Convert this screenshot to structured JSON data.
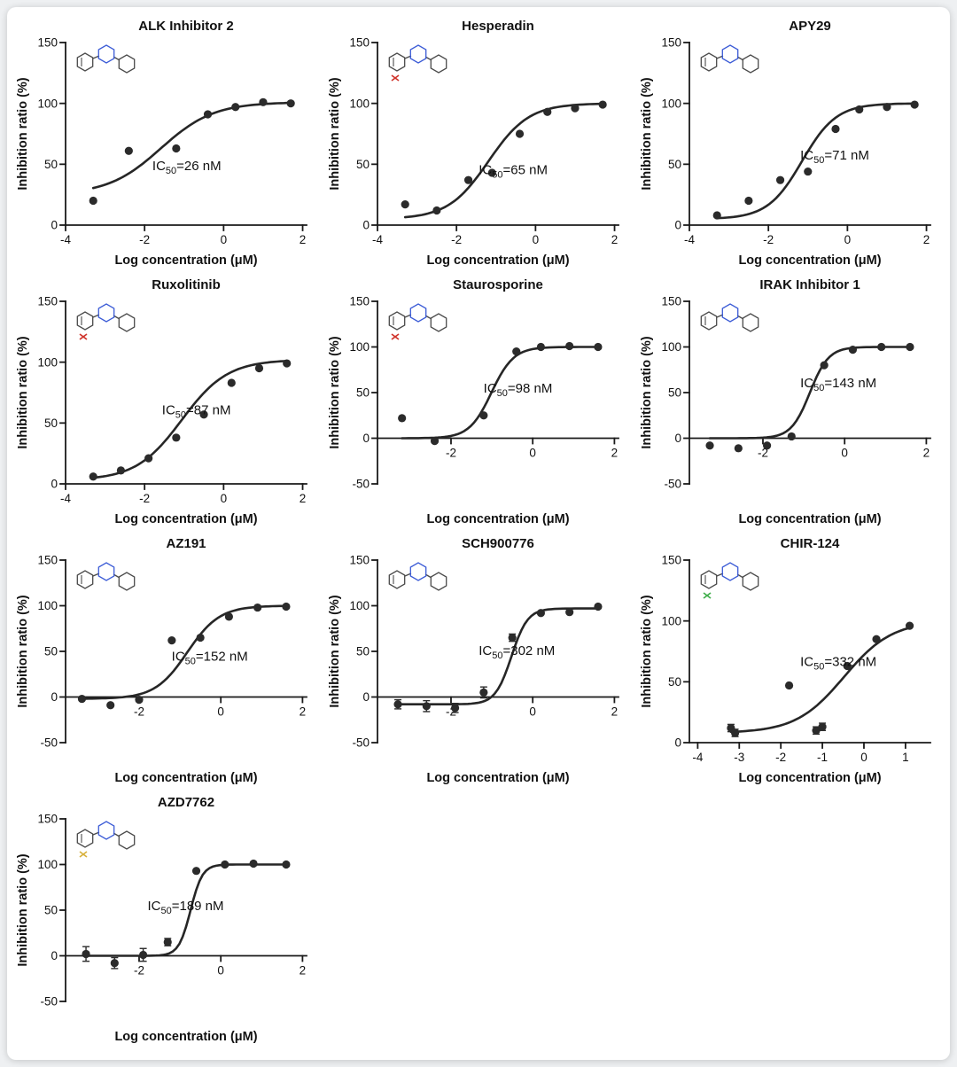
{
  "page": {
    "background": "#eef0f2",
    "card_background": "#ffffff"
  },
  "labels": {
    "ic50_prefix": "IC",
    "ic50_sub": "50",
    "ic50_eq": "="
  },
  "colors": {
    "axis": "#1a1a1a",
    "curve": "#262626",
    "point": "#2b2b2b",
    "molecule_gray": "#4a4a4a",
    "molecule_blue": "#3b5bd6",
    "molecule_red": "#d0342c",
    "molecule_green": "#3fae4a",
    "molecule_yellow": "#d8b13c"
  },
  "chart_data": [
    {
      "type": "scatter",
      "title": "ALK Inhibitor 2",
      "xlabel": "Log concentration (μM)",
      "ylabel": "Inhibition ratio (%)",
      "xlim": [
        -4,
        2.1
      ],
      "ylim": [
        0,
        150
      ],
      "xticks": [
        -4,
        -2,
        0,
        2
      ],
      "yticks": [
        0,
        50,
        100,
        150
      ],
      "ic50_nM": 26,
      "ic50_value": "26 nM",
      "ic50_text": "IC50=26 nM",
      "points": [
        [
          -3.3,
          20
        ],
        [
          -2.4,
          61
        ],
        [
          -1.2,
          63
        ],
        [
          -0.4,
          91
        ],
        [
          0.3,
          97
        ],
        [
          1.0,
          101
        ],
        [
          1.7,
          100
        ]
      ],
      "fit": {
        "bottom": 25,
        "top": 101,
        "logIC50": -1.59,
        "hill": 0.65
      },
      "ic50_pos": {
        "fx": 0.36,
        "fy": 0.7
      },
      "structure_icon": "molecule-skeletal-icon",
      "molecule": {
        "primary": "#4a4a4a",
        "accent": "#3b5bd6"
      }
    },
    {
      "type": "scatter",
      "title": "Hesperadin",
      "xlabel": "Log concentration (μM)",
      "ylabel": "Inhibition ratio (%)",
      "xlim": [
        -4,
        2.1
      ],
      "ylim": [
        0,
        150
      ],
      "xticks": [
        -4,
        -2,
        0,
        2
      ],
      "yticks": [
        0,
        50,
        100,
        150
      ],
      "ic50_nM": 65,
      "ic50_value": "65 nM",
      "ic50_text": "IC50=65 nM",
      "points": [
        [
          -3.3,
          17
        ],
        [
          -2.5,
          12
        ],
        [
          -1.7,
          37
        ],
        [
          -1.1,
          43
        ],
        [
          -0.4,
          75
        ],
        [
          0.3,
          93
        ],
        [
          1.0,
          96
        ],
        [
          1.7,
          99
        ]
      ],
      "fit": {
        "bottom": 5,
        "top": 100,
        "logIC50": -1.19,
        "hill": 0.85
      },
      "ic50_pos": {
        "fx": 0.42,
        "fy": 0.72
      },
      "structure_icon": "molecule-skeletal-icon",
      "molecule": {
        "primary": "#4a4a4a",
        "accent": "#3b5bd6",
        "accent2": "#d0342c"
      }
    },
    {
      "type": "scatter",
      "title": "APY29",
      "xlabel": "Log concentration (μM)",
      "ylabel": "Inhibition ratio (%)",
      "xlim": [
        -4,
        2.1
      ],
      "ylim": [
        0,
        150
      ],
      "xticks": [
        -4,
        -2,
        0,
        2
      ],
      "yticks": [
        0,
        50,
        100,
        150
      ],
      "ic50_nM": 71,
      "ic50_value": "71 nM",
      "ic50_text": "IC50=71 nM",
      "points": [
        [
          -3.3,
          8
        ],
        [
          -2.5,
          20
        ],
        [
          -1.7,
          37
        ],
        [
          -1.0,
          44
        ],
        [
          -0.3,
          79
        ],
        [
          0.3,
          95
        ],
        [
          1.0,
          97
        ],
        [
          1.7,
          99
        ]
      ],
      "fit": {
        "bottom": 5,
        "top": 100,
        "logIC50": -1.15,
        "hill": 1.0
      },
      "ic50_pos": {
        "fx": 0.46,
        "fy": 0.64
      },
      "structure_icon": "molecule-skeletal-icon",
      "molecule": {
        "primary": "#4a4a4a",
        "accent": "#3b5bd6"
      }
    },
    {
      "type": "scatter",
      "title": "Ruxolitinib",
      "xlabel": "Log concentration (μM)",
      "ylabel": "Inhibition ratio (%)",
      "xlim": [
        -4,
        2.1
      ],
      "ylim": [
        0,
        150
      ],
      "xticks": [
        -4,
        -2,
        0,
        2
      ],
      "yticks": [
        0,
        50,
        100,
        150
      ],
      "ic50_nM": 87,
      "ic50_value": "87 nM",
      "ic50_text": "IC50=87 nM",
      "points": [
        [
          -3.3,
          6
        ],
        [
          -2.6,
          11
        ],
        [
          -1.9,
          21
        ],
        [
          -1.2,
          38
        ],
        [
          -0.5,
          57
        ],
        [
          0.2,
          83
        ],
        [
          0.9,
          95
        ],
        [
          1.6,
          99
        ]
      ],
      "fit": {
        "bottom": 3,
        "top": 102,
        "logIC50": -1.06,
        "hill": 0.75
      },
      "ic50_pos": {
        "fx": 0.4,
        "fy": 0.62
      },
      "structure_icon": "molecule-skeletal-icon",
      "molecule": {
        "primary": "#4a4a4a",
        "accent": "#3b5bd6",
        "accent2": "#d0342c"
      }
    },
    {
      "type": "scatter",
      "title": "Staurosporine",
      "xlabel": "Log concentration (μM)",
      "ylabel": "Inhibition ratio (%)",
      "xlim": [
        -3.8,
        2.1
      ],
      "ylim": [
        -50,
        150
      ],
      "xticks": [
        -2,
        0,
        2
      ],
      "yticks": [
        -50,
        0,
        50,
        100,
        150
      ],
      "ic50_nM": 98,
      "ic50_value": "98 nM",
      "ic50_text": "IC50=98 nM",
      "points": [
        [
          -3.2,
          22
        ],
        [
          -2.4,
          -3
        ],
        [
          -1.2,
          25
        ],
        [
          -0.4,
          95
        ],
        [
          0.2,
          100
        ],
        [
          0.9,
          101
        ],
        [
          1.6,
          100
        ]
      ],
      "fit": {
        "bottom": 0,
        "top": 100,
        "logIC50": -1.01,
        "hill": 1.6
      },
      "ic50_pos": {
        "fx": 0.44,
        "fy": 0.5
      },
      "structure_icon": "molecule-skeletal-icon",
      "molecule": {
        "primary": "#4a4a4a",
        "accent": "#3b5bd6",
        "accent2": "#d0342c"
      }
    },
    {
      "type": "scatter",
      "title": "IRAK Inhibitor 1",
      "xlabel": "Log concentration (μM)",
      "ylabel": "Inhibition ratio (%)",
      "xlim": [
        -3.8,
        2.1
      ],
      "ylim": [
        -50,
        150
      ],
      "xticks": [
        -2,
        0,
        2
      ],
      "yticks": [
        -50,
        0,
        50,
        100,
        150
      ],
      "ic50_nM": 143,
      "ic50_value": "143 nM",
      "ic50_text": "IC50=143 nM",
      "points": [
        [
          -3.3,
          -8
        ],
        [
          -2.6,
          -11
        ],
        [
          -1.9,
          -8
        ],
        [
          -1.3,
          2
        ],
        [
          -0.5,
          80
        ],
        [
          0.2,
          97
        ],
        [
          0.9,
          100
        ],
        [
          1.6,
          100
        ]
      ],
      "fit": {
        "bottom": 0,
        "top": 100,
        "logIC50": -0.85,
        "hill": 1.9
      },
      "ic50_pos": {
        "fx": 0.46,
        "fy": 0.47
      },
      "structure_icon": "molecule-skeletal-icon",
      "molecule": {
        "primary": "#4a4a4a",
        "accent": "#3b5bd6"
      }
    },
    {
      "type": "scatter",
      "title": "AZ191",
      "xlabel": "Log concentration (μM)",
      "ylabel": "Inhibition ratio (%)",
      "xlim": [
        -3.8,
        2.1
      ],
      "ylim": [
        -50,
        150
      ],
      "xticks": [
        -2,
        0,
        2
      ],
      "yticks": [
        -50,
        0,
        50,
        100,
        150
      ],
      "ic50_nM": 152,
      "ic50_value": "152 nM",
      "ic50_text": "IC50=152 nM",
      "points": [
        [
          -3.4,
          -2
        ],
        [
          -2.7,
          -9
        ],
        [
          -2.0,
          -3
        ],
        [
          -1.2,
          62
        ],
        [
          -0.5,
          65
        ],
        [
          0.2,
          88
        ],
        [
          0.9,
          98
        ],
        [
          1.6,
          99
        ]
      ],
      "fit": {
        "bottom": -2,
        "top": 100,
        "logIC50": -0.82,
        "hill": 1.1
      },
      "ic50_pos": {
        "fx": 0.44,
        "fy": 0.55
      },
      "structure_icon": "molecule-skeletal-icon",
      "molecule": {
        "primary": "#4a4a4a",
        "accent": "#3b5bd6"
      }
    },
    {
      "type": "scatter",
      "title": "SCH900776",
      "xlabel": "Log concentration (μM)",
      "ylabel": "Inhibition ratio (%)",
      "xlim": [
        -3.8,
        2.1
      ],
      "ylim": [
        -50,
        150
      ],
      "xticks": [
        -2,
        0,
        2
      ],
      "yticks": [
        -50,
        0,
        50,
        100,
        150
      ],
      "ic50_nM": 302,
      "ic50_value": "302 nM",
      "ic50_text": "IC50=302 nM",
      "points": [
        [
          -3.3,
          -8,
          5
        ],
        [
          -2.6,
          -10,
          6
        ],
        [
          -1.9,
          -12,
          5
        ],
        [
          -1.2,
          5,
          6
        ],
        [
          -0.5,
          65,
          4
        ],
        [
          0.2,
          92
        ],
        [
          0.9,
          93
        ],
        [
          1.6,
          99
        ]
      ],
      "fit": {
        "bottom": -8,
        "top": 97,
        "logIC50": -0.52,
        "hill": 2.2
      },
      "ic50_pos": {
        "fx": 0.42,
        "fy": 0.52
      },
      "structure_icon": "molecule-skeletal-icon",
      "molecule": {
        "primary": "#4a4a4a",
        "accent": "#3b5bd6"
      }
    },
    {
      "type": "scatter",
      "title": "CHIR-124",
      "xlabel": "Log concentration (μM)",
      "ylabel": "Inhibition ratio (%)",
      "xlim": [
        -4.2,
        1.6
      ],
      "ylim": [
        0,
        150
      ],
      "xticks": [
        -4,
        -3,
        -2,
        -1,
        0,
        1
      ],
      "yticks": [
        0,
        50,
        100,
        150
      ],
      "ic50_nM": 332,
      "ic50_value": "332 nM",
      "ic50_text": "IC50=332 nM",
      "points": [
        [
          -3.2,
          12,
          3
        ],
        [
          -3.1,
          8,
          3
        ],
        [
          -1.8,
          47
        ],
        [
          -1.15,
          10,
          3
        ],
        [
          -1.0,
          13,
          3
        ],
        [
          -0.4,
          63
        ],
        [
          0.3,
          85
        ],
        [
          1.1,
          96
        ]
      ],
      "fit": {
        "bottom": 8,
        "top": 100,
        "logIC50": -0.48,
        "hill": 0.75
      },
      "ic50_pos": {
        "fx": 0.46,
        "fy": 0.58
      },
      "structure_icon": "molecule-skeletal-icon",
      "molecule": {
        "primary": "#4a4a4a",
        "accent": "#3b5bd6",
        "accent2": "#3fae4a"
      }
    },
    {
      "type": "scatter",
      "title": "AZD7762",
      "xlabel": "Log concentration (μM)",
      "ylabel": "Inhibition ratio (%)",
      "xlim": [
        -3.8,
        2.1
      ],
      "ylim": [
        -50,
        150
      ],
      "xticks": [
        -2,
        0,
        2
      ],
      "yticks": [
        -50,
        0,
        50,
        100,
        150
      ],
      "ic50_nM": 189,
      "ic50_value": "189 nM",
      "ic50_text": "IC50=189 nM",
      "points": [
        [
          -3.3,
          2,
          8
        ],
        [
          -2.6,
          -8,
          6
        ],
        [
          -1.9,
          1,
          7
        ],
        [
          -1.3,
          15,
          4
        ],
        [
          -0.6,
          93
        ],
        [
          0.1,
          100
        ],
        [
          0.8,
          101
        ],
        [
          1.6,
          100
        ]
      ],
      "fit": {
        "bottom": 0,
        "top": 100,
        "logIC50": -0.74,
        "hill": 3.0
      },
      "ic50_pos": {
        "fx": 0.34,
        "fy": 0.5
      },
      "structure_icon": "molecule-skeletal-icon",
      "molecule": {
        "primary": "#4a4a4a",
        "accent": "#3b5bd6",
        "accent2": "#d8b13c"
      }
    }
  ]
}
